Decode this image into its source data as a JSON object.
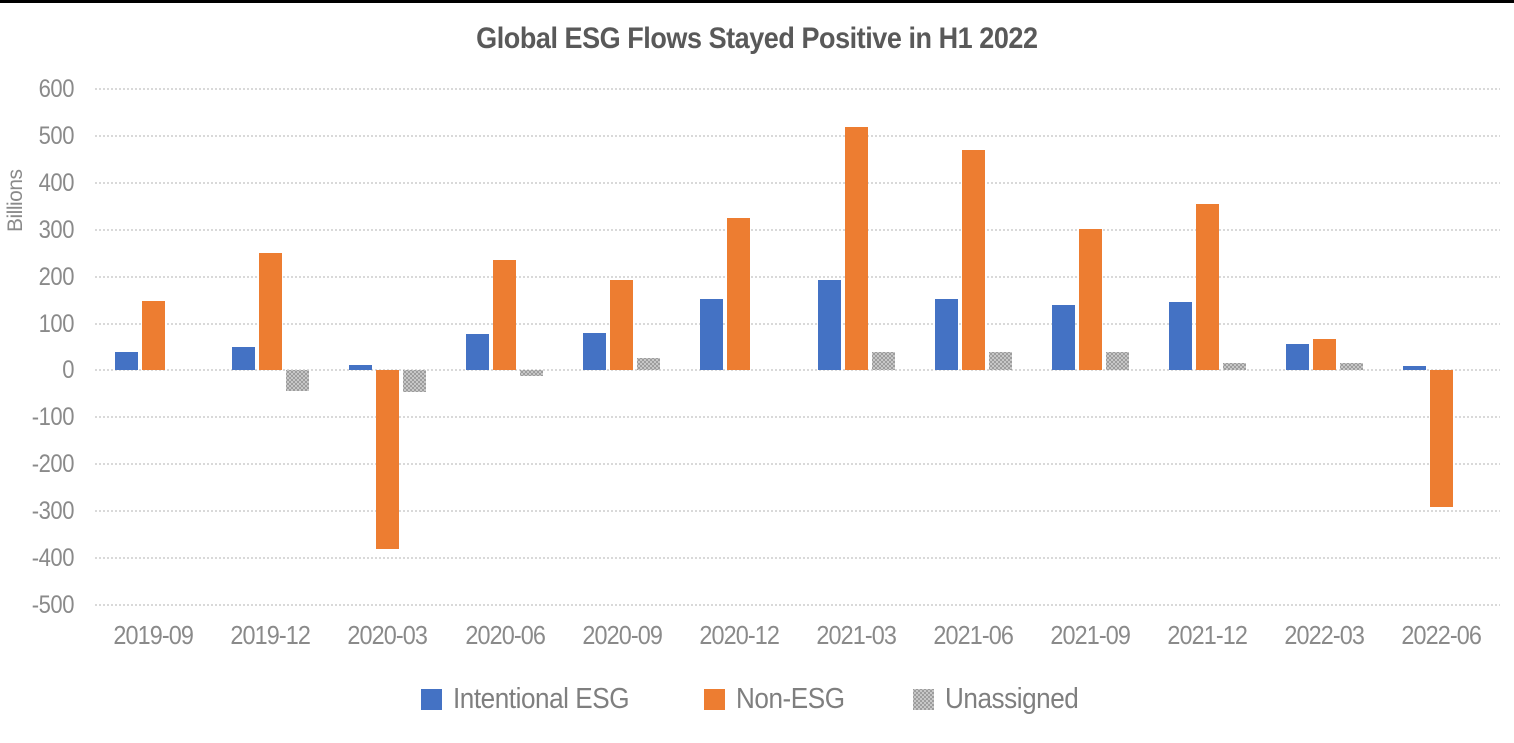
{
  "page": {
    "background": "#ffffff",
    "top_border_color": "#000000"
  },
  "chart_data": {
    "type": "bar",
    "title": "Global ESG Flows Stayed Positive in H1 2022",
    "ylabel": "Billions",
    "xlabel": "",
    "categories": [
      "2019-09",
      "2019-12",
      "2020-03",
      "2020-06",
      "2020-09",
      "2020-12",
      "2021-03",
      "2021-06",
      "2021-09",
      "2021-12",
      "2022-03",
      "2022-06"
    ],
    "series": [
      {
        "name": "Intentional ESG",
        "color": "#4472C4",
        "pattern": false,
        "values": [
          40,
          49,
          11,
          78,
          80,
          152,
          192,
          152,
          140,
          145,
          57,
          9
        ]
      },
      {
        "name": "Non-ESG",
        "color": "#ED7D31",
        "pattern": false,
        "values": [
          148,
          251,
          -381,
          236,
          193,
          324,
          519,
          470,
          301,
          355,
          66,
          -291
        ]
      },
      {
        "name": "Unassigned",
        "color": "#A5A5A5",
        "pattern": true,
        "values": [
          0,
          -43,
          -46,
          -12,
          27,
          0,
          39,
          39,
          39,
          15,
          15,
          0
        ]
      }
    ],
    "ylim": [
      -500,
      600
    ],
    "ytick_step": 100,
    "ytick_labels": [
      "600",
      "500",
      "400",
      "300",
      "200",
      "100",
      "0",
      "-100",
      "-200",
      "-300",
      "-400",
      "-500"
    ],
    "grid": true,
    "gridline_color": "#D9D9D9",
    "legend_position": "bottom",
    "title_color": "#595959",
    "axis_text_color": "#8A8A8A"
  }
}
